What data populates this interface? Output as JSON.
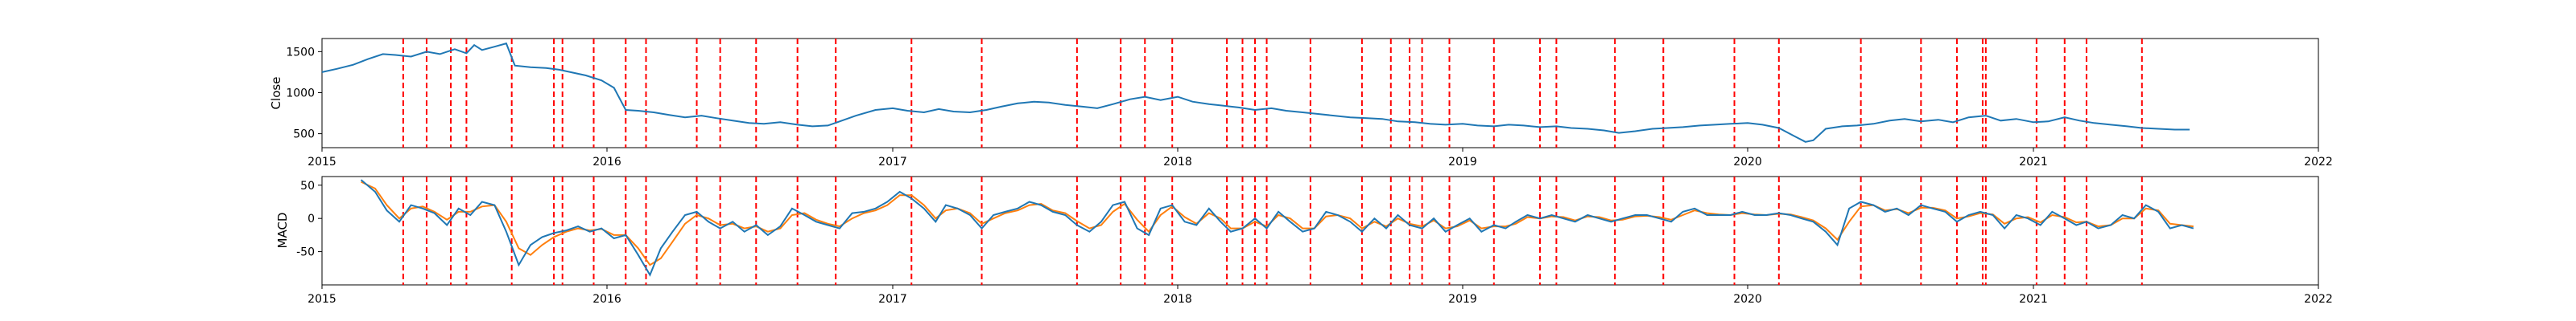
{
  "chart_data": [
    {
      "type": "line",
      "ylabel": "Close",
      "xlim": [
        "2015-01-01",
        "2022-01-01"
      ],
      "ylim": [
        330,
        1660
      ],
      "xticks": [
        "2015",
        "2016",
        "2017",
        "2018",
        "2019",
        "2020",
        "2021",
        "2022"
      ],
      "yticks": [
        500,
        1000,
        1500
      ],
      "colors": {
        "close": "#1f77b4",
        "markers": "#ff0000"
      },
      "series": [
        {
          "x": [
            "2015-01-01",
            "2015-01-20",
            "2015-02-10",
            "2015-03-01",
            "2015-03-20",
            "2015-04-05",
            "2015-04-25",
            "2015-05-15",
            "2015-06-01",
            "2015-06-20",
            "2015-07-05",
            "2015-07-15",
            "2015-07-25",
            "2015-08-10",
            "2015-08-25",
            "2015-09-05",
            "2015-09-25",
            "2015-10-15",
            "2015-11-01",
            "2015-11-20",
            "2015-12-05",
            "2015-12-25",
            "2016-01-10",
            "2016-01-25",
            "2016-02-10",
            "2016-03-01",
            "2016-03-20",
            "2016-04-10",
            "2016-05-01",
            "2016-05-20",
            "2016-06-10",
            "2016-07-01",
            "2016-07-20",
            "2016-08-10",
            "2016-09-01",
            "2016-09-20",
            "2016-10-10",
            "2016-10-25",
            "2016-11-15",
            "2016-12-10",
            "2017-01-01",
            "2017-01-20",
            "2017-02-10",
            "2017-03-01",
            "2017-03-20",
            "2017-04-10",
            "2017-05-01",
            "2017-05-20",
            "2017-06-10",
            "2017-07-01",
            "2017-07-20",
            "2017-08-10",
            "2017-09-01",
            "2017-09-20",
            "2017-10-10",
            "2017-11-01",
            "2017-11-20",
            "2017-12-10",
            "2018-01-01",
            "2018-01-20",
            "2018-02-10",
            "2018-03-01",
            "2018-03-20",
            "2018-04-10",
            "2018-05-01",
            "2018-05-20",
            "2018-06-10",
            "2018-07-01",
            "2018-07-20",
            "2018-08-10",
            "2018-09-01",
            "2018-09-20",
            "2018-10-10",
            "2018-11-01",
            "2018-11-20",
            "2018-12-10",
            "2019-01-01",
            "2019-01-20",
            "2019-02-10",
            "2019-03-01",
            "2019-03-20",
            "2019-04-10",
            "2019-05-01",
            "2019-05-20",
            "2019-06-10",
            "2019-07-01",
            "2019-07-20",
            "2019-08-10",
            "2019-09-01",
            "2019-09-20",
            "2019-10-10",
            "2019-11-01",
            "2019-11-20",
            "2019-12-10",
            "2020-01-01",
            "2020-01-20",
            "2020-02-10",
            "2020-03-01",
            "2020-03-15",
            "2020-03-25",
            "2020-04-10",
            "2020-05-01",
            "2020-05-20",
            "2020-06-10",
            "2020-07-01",
            "2020-07-20",
            "2020-08-10",
            "2020-09-01",
            "2020-09-20",
            "2020-10-10",
            "2020-11-01",
            "2020-11-20",
            "2020-12-10",
            "2021-01-01",
            "2021-01-20",
            "2021-02-10",
            "2021-03-01",
            "2021-03-20",
            "2021-04-10",
            "2021-05-01",
            "2021-05-20",
            "2021-06-10",
            "2021-07-01",
            "2021-07-20"
          ],
          "y": [
            1250,
            1290,
            1340,
            1410,
            1470,
            1460,
            1440,
            1500,
            1470,
            1530,
            1480,
            1580,
            1520,
            1560,
            1600,
            1330,
            1310,
            1300,
            1280,
            1240,
            1210,
            1150,
            1060,
            790,
            780,
            760,
            730,
            700,
            720,
            690,
            660,
            630,
            620,
            640,
            610,
            590,
            600,
            650,
            720,
            790,
            810,
            780,
            760,
            800,
            770,
            760,
            790,
            830,
            870,
            890,
            880,
            850,
            830,
            810,
            860,
            920,
            950,
            910,
            950,
            890,
            860,
            840,
            820,
            790,
            810,
            780,
            760,
            740,
            720,
            700,
            690,
            680,
            650,
            640,
            620,
            610,
            620,
            600,
            590,
            610,
            600,
            580,
            590,
            570,
            560,
            540,
            510,
            530,
            560,
            570,
            580,
            600,
            610,
            620,
            630,
            610,
            570,
            470,
            400,
            420,
            560,
            590,
            600,
            620,
            660,
            680,
            650,
            670,
            640,
            700,
            720,
            660,
            680,
            640,
            650,
            700,
            660,
            630,
            610,
            590,
            570,
            560,
            550,
            550
          ]
        }
      ],
      "event_dates": [
        "2015-04-15",
        "2015-05-15",
        "2015-06-15",
        "2015-07-05",
        "2015-09-01",
        "2015-10-25",
        "2015-11-05",
        "2015-12-15",
        "2016-01-25",
        "2016-02-20",
        "2016-04-25",
        "2016-05-25",
        "2016-07-10",
        "2016-09-01",
        "2016-10-20",
        "2017-01-25",
        "2017-04-25",
        "2017-08-25",
        "2017-10-20",
        "2017-11-20",
        "2017-12-25",
        "2018-03-05",
        "2018-03-25",
        "2018-04-10",
        "2018-04-25",
        "2018-06-20",
        "2018-08-25",
        "2018-10-01",
        "2018-10-25",
        "2018-11-10",
        "2018-12-15",
        "2019-02-10",
        "2019-04-10",
        "2019-05-01",
        "2019-07-15",
        "2019-09-15",
        "2019-12-15",
        "2020-02-10",
        "2020-05-25",
        "2020-08-10",
        "2020-09-25",
        "2020-10-28",
        "2020-11-01",
        "2021-01-05",
        "2021-02-10",
        "2021-03-10",
        "2021-05-20"
      ]
    },
    {
      "type": "line",
      "ylabel": "MACD",
      "xlim": [
        "2015-01-01",
        "2022-01-01"
      ],
      "ylim": [
        -100,
        63
      ],
      "xticks": [
        "2015",
        "2016",
        "2017",
        "2018",
        "2019",
        "2020",
        "2021",
        "2022"
      ],
      "yticks": [
        -50,
        0,
        50
      ],
      "colors": {
        "macd": "#1f77b4",
        "signal": "#ff7f0e",
        "markers": "#ff0000"
      },
      "series": [
        {
          "x": [
            "2015-02-20",
            "2015-03-10",
            "2015-03-25",
            "2015-04-10",
            "2015-04-25",
            "2015-05-10",
            "2015-05-25",
            "2015-06-10",
            "2015-06-25",
            "2015-07-10",
            "2015-07-25",
            "2015-08-10",
            "2015-08-25",
            "2015-09-10",
            "2015-09-25",
            "2015-10-10",
            "2015-10-25",
            "2015-11-10",
            "2015-11-25",
            "2015-12-10",
            "2015-12-25",
            "2016-01-10",
            "2016-01-25",
            "2016-02-10",
            "2016-02-25",
            "2016-03-10",
            "2016-03-25",
            "2016-04-10",
            "2016-04-25",
            "2016-05-10",
            "2016-05-25",
            "2016-06-10",
            "2016-06-25",
            "2016-07-10",
            "2016-07-25",
            "2016-08-10",
            "2016-08-25",
            "2016-09-10",
            "2016-09-25",
            "2016-10-10",
            "2016-10-25",
            "2016-11-10",
            "2016-11-25",
            "2016-12-10",
            "2016-12-25",
            "2017-01-10",
            "2017-01-25",
            "2017-02-10",
            "2017-02-25",
            "2017-03-10",
            "2017-03-25",
            "2017-04-10",
            "2017-04-25",
            "2017-05-10",
            "2017-05-25",
            "2017-06-10",
            "2017-06-25",
            "2017-07-10",
            "2017-07-25",
            "2017-08-10",
            "2017-08-25",
            "2017-09-10",
            "2017-09-25",
            "2017-10-10",
            "2017-10-25",
            "2017-11-10",
            "2017-11-25",
            "2017-12-10",
            "2017-12-25",
            "2018-01-10",
            "2018-01-25",
            "2018-02-10",
            "2018-02-25",
            "2018-03-10",
            "2018-03-25",
            "2018-04-10",
            "2018-04-25",
            "2018-05-10",
            "2018-05-25",
            "2018-06-10",
            "2018-06-25",
            "2018-07-10",
            "2018-07-25",
            "2018-08-10",
            "2018-08-25",
            "2018-09-10",
            "2018-09-25",
            "2018-10-10",
            "2018-10-25",
            "2018-11-10",
            "2018-11-25",
            "2018-12-10",
            "2018-12-25",
            "2019-01-10",
            "2019-01-25",
            "2019-02-10",
            "2019-02-25",
            "2019-03-10",
            "2019-03-25",
            "2019-04-10",
            "2019-04-25",
            "2019-05-10",
            "2019-05-25",
            "2019-06-10",
            "2019-06-25",
            "2019-07-10",
            "2019-07-25",
            "2019-08-10",
            "2019-08-25",
            "2019-09-10",
            "2019-09-25",
            "2019-10-10",
            "2019-10-25",
            "2019-11-10",
            "2019-11-25",
            "2019-12-10",
            "2019-12-25",
            "2020-01-10",
            "2020-01-25",
            "2020-02-10",
            "2020-02-25",
            "2020-03-10",
            "2020-03-25",
            "2020-04-10",
            "2020-04-25",
            "2020-05-10",
            "2020-05-25",
            "2020-06-10",
            "2020-06-25",
            "2020-07-10",
            "2020-07-25",
            "2020-08-10",
            "2020-08-25",
            "2020-09-10",
            "2020-09-25",
            "2020-10-10",
            "2020-10-25",
            "2020-11-10",
            "2020-11-25",
            "2020-12-10",
            "2020-12-25",
            "2021-01-10",
            "2021-01-25",
            "2021-02-10",
            "2021-02-25",
            "2021-03-10",
            "2021-03-25",
            "2021-04-10",
            "2021-04-25",
            "2021-05-10",
            "2021-05-25",
            "2021-06-10",
            "2021-06-25",
            "2021-07-10",
            "2021-07-25"
          ],
          "macd": [
            58,
            40,
            12,
            -5,
            20,
            15,
            8,
            -10,
            15,
            5,
            25,
            20,
            -20,
            -70,
            -40,
            -28,
            -22,
            -18,
            -12,
            -20,
            -15,
            -30,
            -25,
            -55,
            -85,
            -45,
            -20,
            5,
            10,
            -5,
            -15,
            -5,
            -20,
            -10,
            -25,
            -12,
            15,
            5,
            -5,
            -10,
            -15,
            8,
            10,
            15,
            25,
            40,
            30,
            15,
            -5,
            20,
            15,
            5,
            -15,
            5,
            10,
            15,
            25,
            20,
            10,
            5,
            -10,
            -20,
            -5,
            20,
            25,
            -15,
            -25,
            15,
            20,
            -5,
            -10,
            15,
            -5,
            -20,
            -15,
            0,
            -15,
            10,
            -5,
            -20,
            -15,
            10,
            5,
            -5,
            -20,
            0,
            -15,
            5,
            -10,
            -15,
            0,
            -20,
            -10,
            0,
            -20,
            -10,
            -15,
            -5,
            5,
            0,
            5,
            0,
            -5,
            5,
            0,
            -5,
            0,
            5,
            5,
            0,
            -5,
            10,
            15,
            5,
            5,
            5,
            10,
            5,
            5,
            8,
            5,
            0,
            -5,
            -20,
            -40,
            15,
            25,
            20,
            10,
            15,
            5,
            20,
            15,
            10,
            -5,
            5,
            10,
            5,
            -15,
            5,
            0,
            -10,
            10,
            0,
            -10,
            -5,
            -15,
            -10,
            5,
            0,
            20,
            10,
            -15,
            -10,
            -15,
            -10,
            -15,
            -10,
            -5,
            -5
          ],
          "signal": [
            55,
            45,
            20,
            0,
            15,
            18,
            10,
            -2,
            10,
            10,
            18,
            20,
            -5,
            -45,
            -55,
            -40,
            -28,
            -20,
            -15,
            -18,
            -16,
            -25,
            -25,
            -45,
            -70,
            -60,
            -35,
            -8,
            5,
            0,
            -10,
            -8,
            -15,
            -12,
            -20,
            -15,
            5,
            8,
            -2,
            -8,
            -12,
            0,
            8,
            12,
            20,
            35,
            35,
            20,
            0,
            12,
            15,
            8,
            -8,
            0,
            8,
            12,
            20,
            22,
            12,
            8,
            -4,
            -15,
            -10,
            10,
            22,
            -2,
            -20,
            5,
            18,
            2,
            -8,
            8,
            0,
            -15,
            -15,
            -5,
            -12,
            5,
            0,
            -15,
            -15,
            3,
            5,
            0,
            -15,
            -5,
            -12,
            0,
            -8,
            -12,
            -3,
            -15,
            -12,
            -3,
            -15,
            -12,
            -12,
            -8,
            2,
            0,
            3,
            2,
            -3,
            3,
            2,
            -3,
            -2,
            3,
            4,
            2,
            -2,
            5,
            12,
            8,
            6,
            5,
            8,
            6,
            5,
            7,
            6,
            2,
            -3,
            -15,
            -32,
            -5,
            18,
            20,
            12,
            14,
            8,
            16,
            16,
            12,
            0,
            3,
            8,
            6,
            -8,
            0,
            2,
            -6,
            5,
            2,
            -6,
            -5,
            -12,
            -10,
            0,
            0,
            15,
            12,
            -8,
            -10,
            -12,
            -10,
            -13,
            -11,
            -7,
            -6
          ]
        }
      ],
      "event_dates": [
        "2015-04-15",
        "2015-05-15",
        "2015-06-15",
        "2015-07-05",
        "2015-09-01",
        "2015-10-25",
        "2015-11-05",
        "2015-12-15",
        "2016-01-25",
        "2016-02-20",
        "2016-04-25",
        "2016-05-25",
        "2016-07-10",
        "2016-09-01",
        "2016-10-20",
        "2017-01-25",
        "2017-04-25",
        "2017-08-25",
        "2017-10-20",
        "2017-11-20",
        "2017-12-25",
        "2018-03-05",
        "2018-03-25",
        "2018-04-10",
        "2018-04-25",
        "2018-06-20",
        "2018-08-25",
        "2018-10-01",
        "2018-10-25",
        "2018-11-10",
        "2018-12-15",
        "2019-02-10",
        "2019-04-10",
        "2019-05-01",
        "2019-07-15",
        "2019-09-15",
        "2019-12-15",
        "2020-02-10",
        "2020-05-25",
        "2020-08-10",
        "2020-09-25",
        "2020-10-28",
        "2020-11-01",
        "2021-01-05",
        "2021-02-10",
        "2021-03-10",
        "2021-05-20"
      ]
    }
  ]
}
